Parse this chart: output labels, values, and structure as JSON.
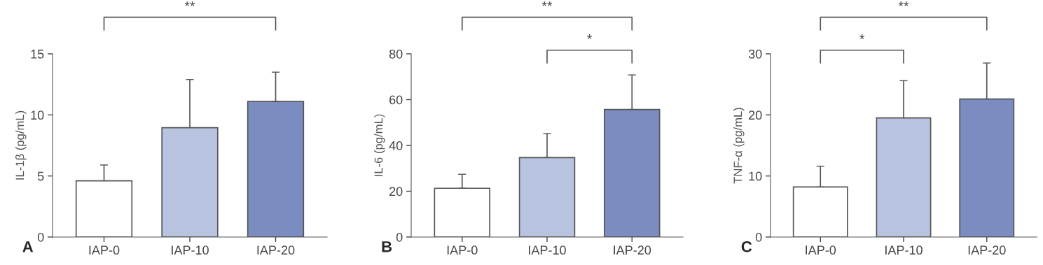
{
  "chart_data": [
    {
      "type": "bar",
      "ylabel": "IL-1β (pg/mL)",
      "categories": [
        "IAP-0",
        "IAP-10",
        "IAP-20"
      ],
      "values": [
        4.6,
        8.95,
        11.1
      ],
      "colors": [
        "#ffffff",
        "#b8c3e0",
        "#7a8cc0"
      ],
      "errors": [
        [
          4.6,
          5.9
        ],
        [
          8.95,
          12.9
        ],
        [
          11.1,
          13.5
        ]
      ],
      "ylim": [
        0,
        15
      ],
      "yticks": [
        0,
        5,
        10,
        15
      ],
      "grid": false,
      "annotations": [
        "A",
        "**"
      ]
    },
    {
      "type": "bar",
      "ylabel": "IL-6 (pg/mL)",
      "categories": [
        "IAP-0",
        "IAP-10",
        "IAP-20"
      ],
      "values": [
        21.3,
        34.7,
        55.7
      ],
      "colors": [
        "#ffffff",
        "#b8c3e0",
        "#7a8cc0"
      ],
      "errors": [
        [
          21.3,
          27.4
        ],
        [
          34.7,
          45.2
        ],
        [
          55.7,
          70.8
        ]
      ],
      "ylim": [
        0,
        80
      ],
      "yticks": [
        0,
        20,
        40,
        60,
        80
      ],
      "grid": false,
      "annotations": [
        "B",
        "**",
        "*"
      ]
    },
    {
      "type": "bar",
      "ylabel": "TNF-α (pg/mL)",
      "categories": [
        "IAP-0",
        "IAP-10",
        "IAP-20"
      ],
      "values": [
        8.2,
        19.5,
        22.6
      ],
      "colors": [
        "#ffffff",
        "#b8c3e0",
        "#7a8cc0"
      ],
      "errors": [
        [
          8.2,
          11.6
        ],
        [
          19.5,
          25.6
        ],
        [
          22.6,
          28.5
        ]
      ],
      "ylim": [
        0,
        30
      ],
      "yticks": [
        0,
        10,
        20,
        30
      ],
      "grid": false,
      "annotations": [
        "C",
        "**",
        "*"
      ]
    }
  ]
}
